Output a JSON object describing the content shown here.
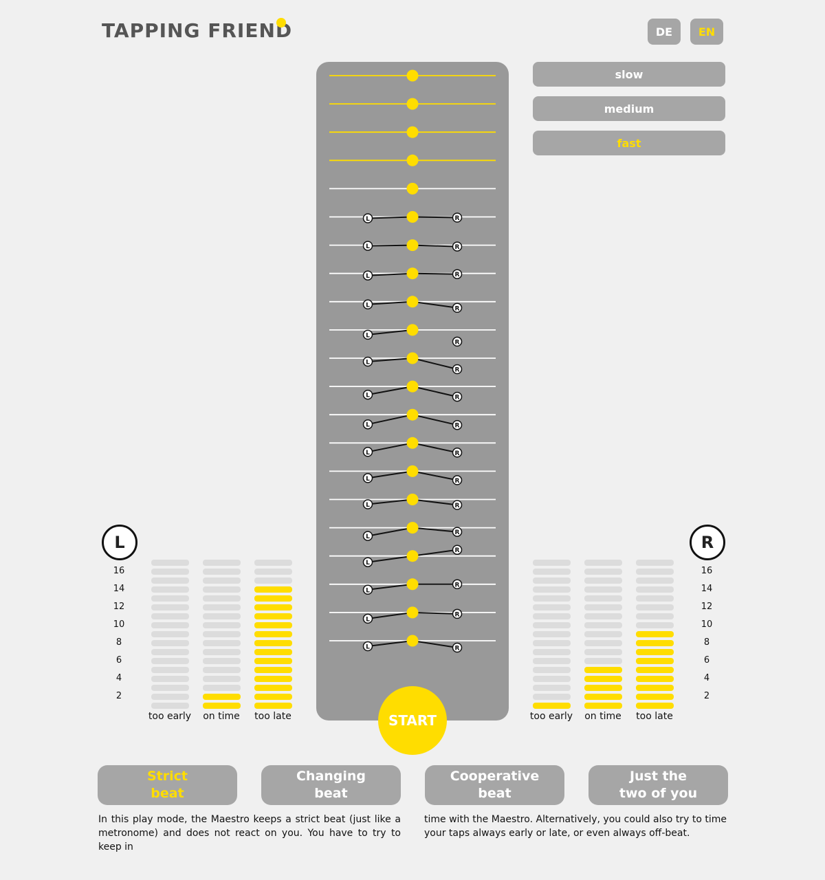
{
  "header": {
    "title": "TAPPING FRIEND"
  },
  "language": {
    "options": [
      "DE",
      "EN"
    ],
    "selected": "EN"
  },
  "speed": {
    "options": [
      "slow",
      "medium",
      "fast"
    ],
    "selected": "fast"
  },
  "start_label": "START",
  "players": {
    "left": "L",
    "right": "R"
  },
  "scale_labels": [
    "16",
    "14",
    "12",
    "10",
    "8",
    "6",
    "4",
    "2"
  ],
  "meter_labels": [
    "too early",
    "on time",
    "too late"
  ],
  "left_meters": {
    "too_early": 0,
    "on_time": 2,
    "too_late": 14
  },
  "right_meters": {
    "too_early": 1,
    "on_time": 5,
    "too_late": 9
  },
  "timeline": {
    "rows_with_only_beat_highlighted": 4,
    "rows_without_taps": 1,
    "tap_rows": [
      {
        "l": 2,
        "r": 1
      },
      {
        "l": 1,
        "r": 2
      },
      {
        "l": 3,
        "r": 1
      },
      {
        "l": 4,
        "r": 9
      },
      {
        "l": 7,
        "r": 17
      },
      {
        "l": 5,
        "r": 16
      },
      {
        "l": 12,
        "r": 15
      },
      {
        "l": 14,
        "r": 15
      },
      {
        "l": 13,
        "r": 14
      },
      {
        "l": 10,
        "r": 13
      },
      {
        "l": 7,
        "r": 8
      },
      {
        "l": 12,
        "r": 6
      },
      {
        "l": 9,
        "r": -9
      },
      {
        "l": 8,
        "r": 0
      },
      {
        "l": 9,
        "r": 2
      },
      {
        "l": 8,
        "r": 10
      }
    ]
  },
  "modes": [
    {
      "line1": "Strict",
      "line2": "beat",
      "active": true
    },
    {
      "line1": "Changing",
      "line2": "beat",
      "active": false
    },
    {
      "line1": "Cooperative",
      "line2": "beat",
      "active": false
    },
    {
      "line1": "Just the",
      "line2": "two of you",
      "active": false
    }
  ],
  "description": {
    "column1": "In this play mode, the Maestro keeps a strict beat (just like a metronome) and does not react on you. You have to try to keep in",
    "column2": "time with the Maestro. Alternatively, you could also try to time your taps always early or late, or even always off-beat."
  },
  "colors": {
    "accent": "#ffdd00",
    "button": "#a6a6a6",
    "panel": "#999999",
    "background": "#f0f0f0"
  }
}
